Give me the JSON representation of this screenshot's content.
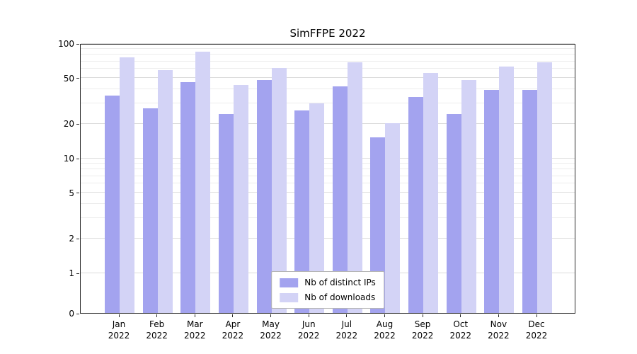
{
  "chart_data": {
    "type": "bar",
    "title": "SimFFPE 2022",
    "categories": [
      "Jan 2022",
      "Feb 2022",
      "Mar 2022",
      "Apr 2022",
      "May 2022",
      "Jun 2022",
      "Jul 2022",
      "Aug 2022",
      "Sep 2022",
      "Oct 2022",
      "Nov 2022",
      "Dec 2022"
    ],
    "series": [
      {
        "name": "Nb of distinct IPs",
        "color": "#a3a3ef",
        "values": [
          35,
          27,
          46,
          24,
          48,
          26,
          42,
          15,
          34,
          24,
          39,
          39
        ]
      },
      {
        "name": "Nb of downloads",
        "color": "#d3d3f6",
        "values": [
          75,
          58,
          84,
          43,
          61,
          30,
          68,
          20,
          55,
          48,
          63,
          68
        ]
      }
    ],
    "yscale": "symlog",
    "yticks": [
      0,
      1,
      2,
      5,
      10,
      20,
      50,
      100
    ],
    "ylim": [
      0,
      100
    ],
    "xlabel": "",
    "ylabel": "",
    "grid": true,
    "legend_position": "lower center"
  }
}
